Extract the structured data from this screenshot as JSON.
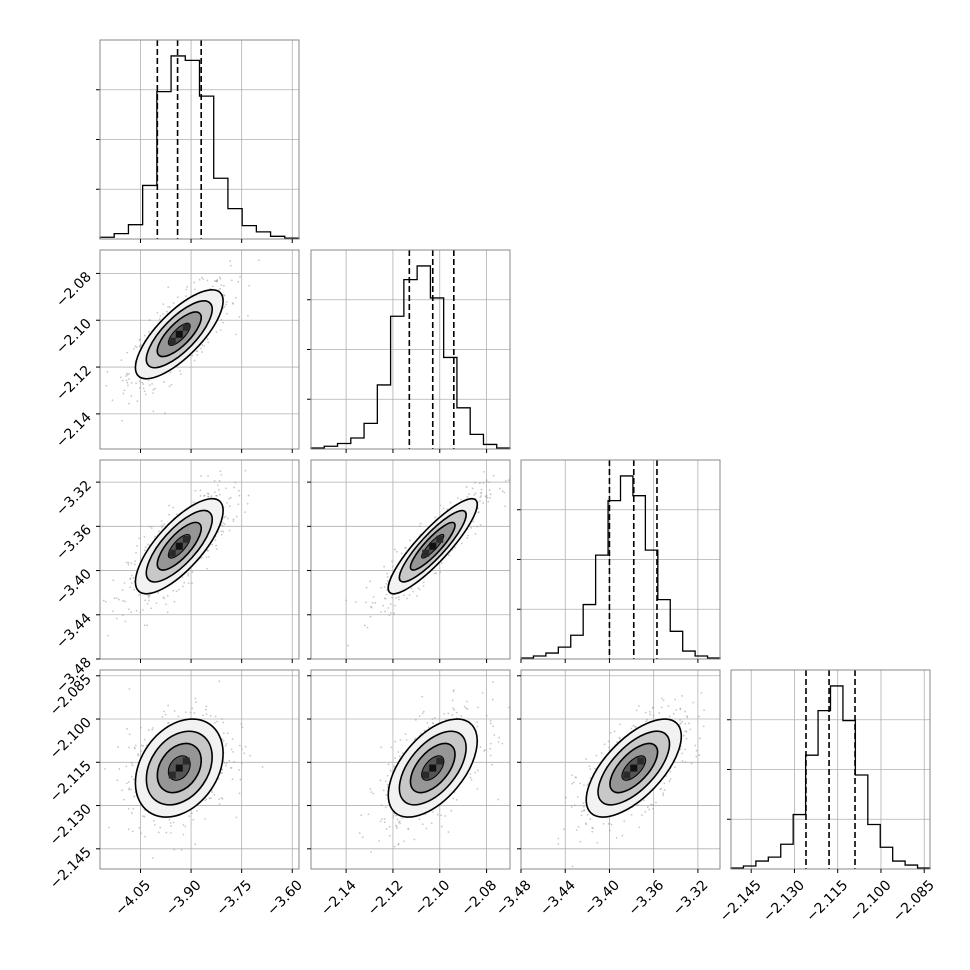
{
  "chart_data": {
    "type": "corner",
    "title": "",
    "n_params": 4,
    "colors": {
      "hist": "#000000",
      "grid": "#b0b0b0",
      "points": "#9a9a9a",
      "contour": "#000000"
    },
    "grid": true,
    "parameters": [
      {
        "index": 0,
        "range": [
          -4.17,
          -3.58
        ],
        "ticks": [
          -4.05,
          -3.9,
          -3.75,
          -3.6
        ],
        "tick_labels": [
          "−4.05",
          "−3.90",
          "−3.75",
          "−3.60"
        ],
        "quantiles": [
          -4.0,
          -3.94,
          -3.87
        ],
        "median": -3.94,
        "hist_counts": [
          2,
          6,
          16,
          60,
          165,
          205,
          200,
          160,
          68,
          34,
          15,
          8,
          3,
          1
        ]
      },
      {
        "index": 1,
        "range": [
          -2.155,
          -2.07
        ],
        "ticks": [
          -2.14,
          -2.12,
          -2.1,
          -2.08
        ],
        "tick_labels": [
          "−2.14",
          "−2.12",
          "−2.10",
          "−2.08"
        ],
        "quantiles": [
          -2.113,
          -2.103,
          -2.094
        ],
        "median": -2.103,
        "hist_counts": [
          1,
          3,
          6,
          12,
          28,
          70,
          145,
          185,
          200,
          165,
          100,
          45,
          16,
          5,
          1
        ]
      },
      {
        "index": 2,
        "range": [
          -3.48,
          -3.3
        ],
        "ticks": [
          -3.48,
          -3.44,
          -3.4,
          -3.36,
          -3.32
        ],
        "tick_labels": [
          "−3.48",
          "−3.44",
          "−3.40",
          "−3.36",
          "−3.32"
        ],
        "quantiles": [
          -3.4,
          -3.378,
          -3.357
        ],
        "median": -3.378,
        "hist_counts": [
          1,
          3,
          6,
          12,
          24,
          55,
          105,
          160,
          185,
          165,
          110,
          60,
          28,
          8,
          3,
          1
        ]
      },
      {
        "index": 3,
        "range": [
          -2.152,
          -2.083
        ],
        "ticks": [
          -2.145,
          -2.13,
          -2.115,
          -2.1,
          -2.085
        ],
        "tick_labels": [
          "−2.145",
          "−2.130",
          "−2.115",
          "−2.100",
          "−2.085"
        ],
        "quantiles": [
          -2.126,
          -2.118,
          -2.109
        ],
        "median": -2.118,
        "hist_counts": [
          1,
          3,
          8,
          12,
          25,
          55,
          115,
          160,
          185,
          150,
          95,
          45,
          22,
          8,
          4,
          1
        ]
      }
    ],
    "pairs": [
      {
        "x": 0,
        "y": 1,
        "center": [
          -3.935,
          -2.106
        ],
        "rho": 0.75
      },
      {
        "x": 0,
        "y": 2,
        "center": [
          -3.935,
          -3.378
        ],
        "rho": 0.75
      },
      {
        "x": 1,
        "y": 2,
        "center": [
          -2.103,
          -3.378
        ],
        "rho": 0.88
      },
      {
        "x": 0,
        "y": 3,
        "center": [
          -3.935,
          -2.117
        ],
        "rho": 0.3
      },
      {
        "x": 1,
        "y": 3,
        "center": [
          -2.103,
          -2.117
        ],
        "rho": 0.55
      },
      {
        "x": 2,
        "y": 3,
        "center": [
          -3.378,
          -2.117
        ],
        "rho": 0.65
      }
    ],
    "contour_sigma_levels": [
      0.5,
      1.0,
      1.5,
      2.0
    ]
  }
}
